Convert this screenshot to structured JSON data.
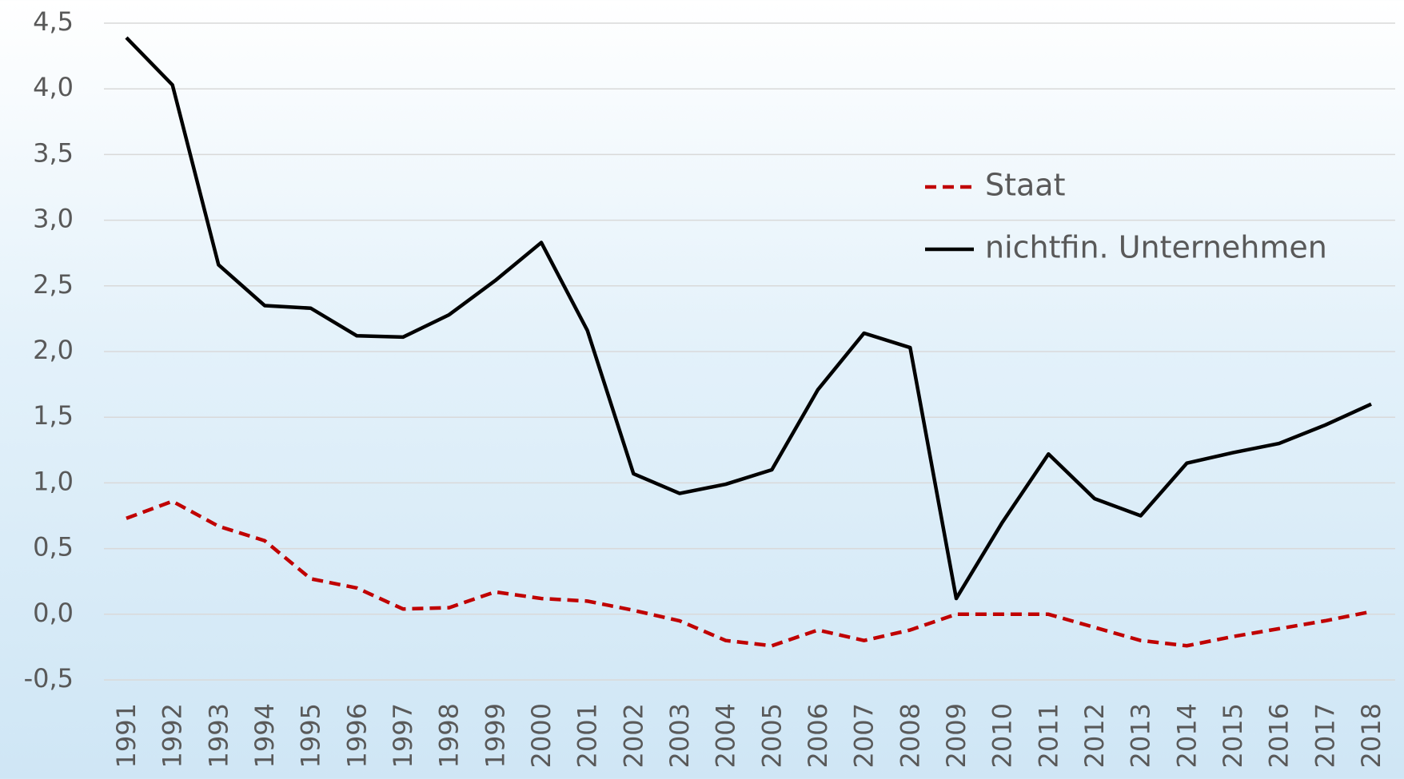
{
  "chart_data": {
    "type": "line",
    "categories": [
      "1991",
      "1992",
      "1993",
      "1994",
      "1995",
      "1996",
      "1997",
      "1998",
      "1999",
      "2000",
      "2001",
      "2002",
      "2003",
      "2004",
      "2005",
      "2006",
      "2007",
      "2008",
      "2009",
      "2010",
      "2011",
      "2012",
      "2013",
      "2014",
      "2015",
      "2016",
      "2017",
      "2018"
    ],
    "series": [
      {
        "name": "Staat",
        "color": "#c00000",
        "dashed": true,
        "values": [
          0.73,
          0.86,
          0.67,
          0.56,
          0.27,
          0.2,
          0.04,
          0.05,
          0.17,
          0.12,
          0.1,
          0.03,
          -0.05,
          -0.2,
          -0.24,
          -0.12,
          -0.2,
          -0.12,
          0,
          0,
          0,
          -0.1,
          -0.2,
          -0.24,
          -0.17,
          -0.11,
          -0.05,
          0.02
        ]
      },
      {
        "name": "nichtfin. Unternehmen",
        "color": "#000000",
        "dashed": false,
        "values": [
          4.39,
          4.03,
          2.66,
          2.35,
          2.33,
          2.12,
          2.11,
          2.28,
          2.54,
          2.83,
          2.16,
          1.07,
          0.92,
          0.99,
          1.1,
          1.71,
          2.14,
          2.03,
          0.12,
          0.7,
          1.22,
          0.88,
          0.75,
          1.15,
          1.23,
          1.3,
          1.44,
          1.6
        ]
      }
    ],
    "ylim": [
      -0.5,
      4.5
    ],
    "yticks": [
      {
        "value": -0.5,
        "label": "-0,5"
      },
      {
        "value": 0,
        "label": "0,0"
      },
      {
        "value": 0.5,
        "label": "0,5"
      },
      {
        "value": 1,
        "label": "1,0"
      },
      {
        "value": 1.5,
        "label": "1,5"
      },
      {
        "value": 2,
        "label": "2,0"
      },
      {
        "value": 2.5,
        "label": "2,5"
      },
      {
        "value": 3,
        "label": "3,0"
      },
      {
        "value": 3.5,
        "label": "3,5"
      },
      {
        "value": 4,
        "label": "4,0"
      },
      {
        "value": 4.5,
        "label": "4,5"
      }
    ],
    "grid": true,
    "legend": "upper right"
  }
}
